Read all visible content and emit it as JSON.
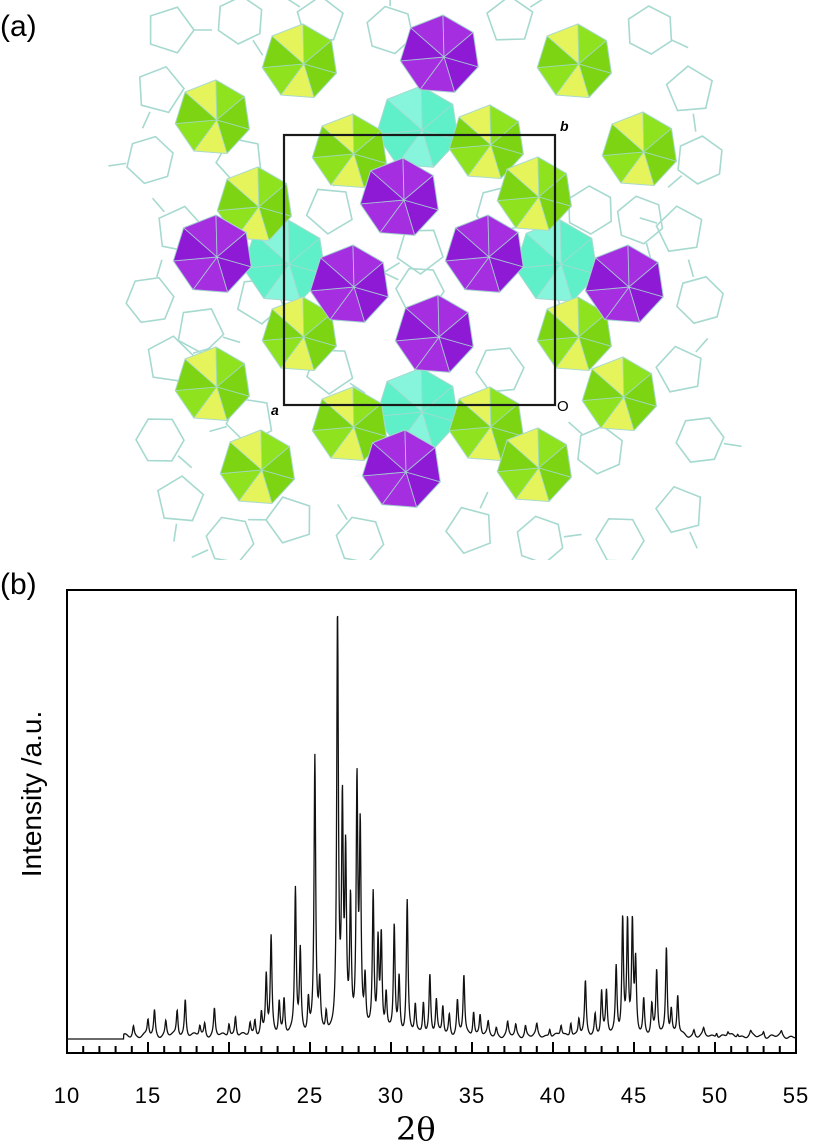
{
  "panels": {
    "a": {
      "label": "(a)",
      "unit_cell_labels": {
        "b": "b",
        "a": "a",
        "origin": "O"
      },
      "colors": {
        "purple": "#a52ee0",
        "purple_dark": "#8e1ad6",
        "cyan": "#5ff0c9",
        "cyan_light": "#86f5dc",
        "lime": "#8fe21e",
        "lime_dark": "#7cd412",
        "yellow": "#e6f45c",
        "wire": "#a6d9cf",
        "cell_box": "#1a1a1a"
      }
    },
    "b": {
      "label": "(b)"
    }
  },
  "chart_data": {
    "type": "line",
    "title": "",
    "xlabel": "2θ",
    "ylabel": "Intensity /a.u.",
    "xlim": [
      10,
      55
    ],
    "ylim": [
      0,
      100
    ],
    "xticks_major": [
      10,
      15,
      20,
      25,
      30,
      35,
      40,
      45,
      50,
      55
    ],
    "xticks_minor_step": 1,
    "grid": false,
    "legend": null,
    "baseline_start": 13.5,
    "peaks": [
      {
        "x": 14.1,
        "y": 2.6
      },
      {
        "x": 15.0,
        "y": 3.8
      },
      {
        "x": 15.4,
        "y": 6.0
      },
      {
        "x": 16.1,
        "y": 3.5
      },
      {
        "x": 16.8,
        "y": 6.1
      },
      {
        "x": 17.3,
        "y": 8.7
      },
      {
        "x": 18.2,
        "y": 2.5
      },
      {
        "x": 18.5,
        "y": 3.0
      },
      {
        "x": 19.1,
        "y": 6.4
      },
      {
        "x": 20.0,
        "y": 3.2
      },
      {
        "x": 20.4,
        "y": 4.7
      },
      {
        "x": 21.3,
        "y": 3.0
      },
      {
        "x": 21.6,
        "y": 3.8
      },
      {
        "x": 22.0,
        "y": 5.0
      },
      {
        "x": 22.3,
        "y": 14.0
      },
      {
        "x": 22.6,
        "y": 22.7
      },
      {
        "x": 23.1,
        "y": 8.0
      },
      {
        "x": 23.4,
        "y": 8.5
      },
      {
        "x": 24.1,
        "y": 34.3
      },
      {
        "x": 24.4,
        "y": 19.5
      },
      {
        "x": 24.9,
        "y": 8.0
      },
      {
        "x": 25.3,
        "y": 65.5
      },
      {
        "x": 25.6,
        "y": 11.0
      },
      {
        "x": 26.0,
        "y": 5.0
      },
      {
        "x": 26.7,
        "y": 100.0
      },
      {
        "x": 27.0,
        "y": 51.3
      },
      {
        "x": 27.2,
        "y": 40.4
      },
      {
        "x": 27.5,
        "y": 30.0
      },
      {
        "x": 27.9,
        "y": 58.4
      },
      {
        "x": 28.1,
        "y": 46.1
      },
      {
        "x": 28.4,
        "y": 12.0
      },
      {
        "x": 28.9,
        "y": 32.9
      },
      {
        "x": 29.2,
        "y": 21.0
      },
      {
        "x": 29.4,
        "y": 22.5
      },
      {
        "x": 29.7,
        "y": 9.0
      },
      {
        "x": 30.2,
        "y": 25.8
      },
      {
        "x": 30.5,
        "y": 13.0
      },
      {
        "x": 31.0,
        "y": 31.7
      },
      {
        "x": 31.5,
        "y": 7.0
      },
      {
        "x": 32.0,
        "y": 8.0
      },
      {
        "x": 32.4,
        "y": 14.2
      },
      {
        "x": 32.8,
        "y": 8.0
      },
      {
        "x": 33.2,
        "y": 7.0
      },
      {
        "x": 33.6,
        "y": 5.0
      },
      {
        "x": 34.1,
        "y": 8.0
      },
      {
        "x": 34.5,
        "y": 14.2
      },
      {
        "x": 35.1,
        "y": 6.0
      },
      {
        "x": 35.5,
        "y": 5.0
      },
      {
        "x": 36.0,
        "y": 3.0
      },
      {
        "x": 36.5,
        "y": 2.0
      },
      {
        "x": 37.2,
        "y": 3.0
      },
      {
        "x": 37.7,
        "y": 2.5
      },
      {
        "x": 38.3,
        "y": 2.5
      },
      {
        "x": 39.0,
        "y": 2.5
      },
      {
        "x": 39.8,
        "y": 2.0
      },
      {
        "x": 40.5,
        "y": 2.5
      },
      {
        "x": 41.1,
        "y": 3.5
      },
      {
        "x": 41.6,
        "y": 4.0
      },
      {
        "x": 42.0,
        "y": 12.5
      },
      {
        "x": 42.6,
        "y": 5.0
      },
      {
        "x": 43.0,
        "y": 10.5
      },
      {
        "x": 43.3,
        "y": 10.0
      },
      {
        "x": 43.9,
        "y": 16.0
      },
      {
        "x": 44.3,
        "y": 27.2
      },
      {
        "x": 44.6,
        "y": 26.2
      },
      {
        "x": 44.9,
        "y": 25.5
      },
      {
        "x": 45.1,
        "y": 16.5
      },
      {
        "x": 45.6,
        "y": 8.5
      },
      {
        "x": 46.1,
        "y": 7.0
      },
      {
        "x": 46.4,
        "y": 15.1
      },
      {
        "x": 47.0,
        "y": 21.0
      },
      {
        "x": 47.3,
        "y": 6.0
      },
      {
        "x": 47.7,
        "y": 9.5
      },
      {
        "x": 48.7,
        "y": 1.5
      },
      {
        "x": 49.3,
        "y": 1.5
      },
      {
        "x": 50.1,
        "y": 1.2
      },
      {
        "x": 50.8,
        "y": 1.0
      },
      {
        "x": 51.4,
        "y": 0.9
      },
      {
        "x": 52.2,
        "y": 0.9
      },
      {
        "x": 53.0,
        "y": 1.3
      },
      {
        "x": 54.1,
        "y": 0.9
      }
    ]
  }
}
